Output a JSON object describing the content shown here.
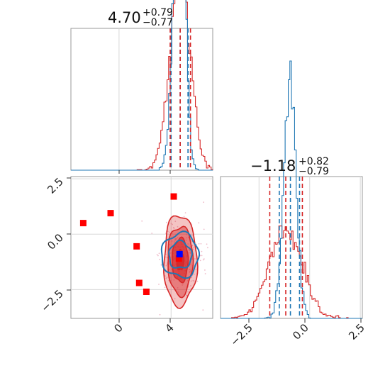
{
  "chart_data": [
    {
      "panel": "top-left",
      "type": "histogram",
      "title": {
        "main": "4.70",
        "sup": "+0.79",
        "sub": "−0.77"
      },
      "xlim": [
        -3.7,
        7.2
      ],
      "grid": true,
      "x_gridlines": [
        0,
        4
      ],
      "series": [
        {
          "color": "#1f77b4",
          "lines": [
            4.0,
            4.7,
            5.3
          ]
        },
        {
          "color": "#d62728",
          "lines": [
            3.93,
            4.7,
            5.49
          ]
        }
      ]
    },
    {
      "panel": "top-right",
      "type": "histogram",
      "title": {
        "main": "−1.18",
        "sup": "+0.82",
        "sub": "−0.79"
      },
      "xlim": [
        -4.4,
        2.6
      ],
      "grid": true,
      "x_ticks": [
        "−2.5",
        "0.0",
        "2.5"
      ],
      "x_tick_values": [
        -2.5,
        0.0,
        2.5
      ],
      "series": [
        {
          "color": "#1f77b4",
          "lines": [
            -1.5,
            -0.95,
            -0.5
          ]
        },
        {
          "color": "#d62728",
          "lines": [
            -1.97,
            -1.18,
            -0.36
          ]
        }
      ]
    },
    {
      "panel": "bottom-left",
      "type": "scatter",
      "xlim": [
        -3.7,
        7.2
      ],
      "ylim": [
        -3.8,
        2.6
      ],
      "grid": true,
      "x_ticks": [
        "0",
        "4"
      ],
      "x_tick_values": [
        0,
        4
      ],
      "y_ticks": [
        "2.5",
        "0.0",
        "−2.5"
      ],
      "y_tick_values": [
        2.5,
        0.0,
        -2.5
      ],
      "markers": [
        {
          "color": "#ff0000",
          "x": [
            -2.75,
            -0.65,
            4.2,
            1.35,
            1.55,
            2.1,
            4.6
          ],
          "y": [
            0.5,
            0.95,
            1.7,
            -0.55,
            -2.2,
            -2.6,
            -1.1
          ]
        },
        {
          "color": "#0000ff",
          "x": [
            4.65
          ],
          "y": [
            -0.9
          ]
        }
      ],
      "contours": [
        {
          "color": "#d62728",
          "center": [
            4.7,
            -1.18
          ],
          "sigma": [
            0.82,
            0.82
          ]
        },
        {
          "color": "#1f77b4",
          "center": [
            4.7,
            -0.95
          ],
          "sigma": [
            0.65,
            0.45
          ]
        }
      ]
    }
  ]
}
